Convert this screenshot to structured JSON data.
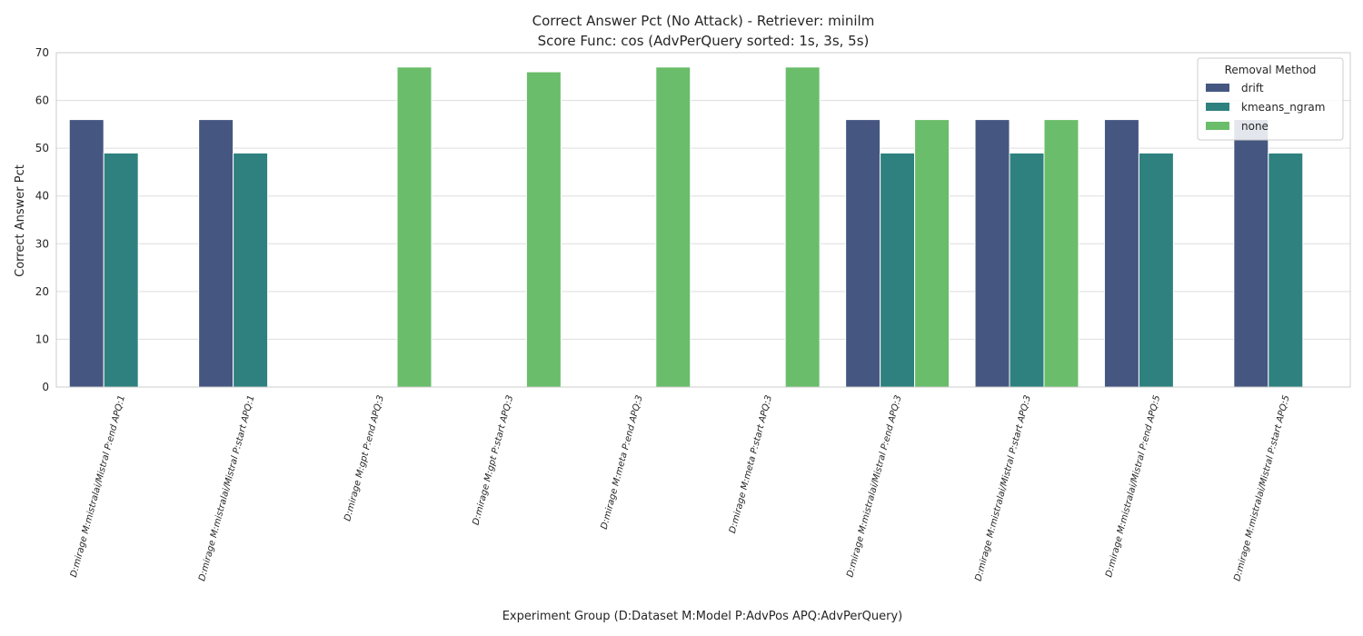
{
  "chart_data": {
    "type": "bar",
    "title": "Correct Answer Pct (No Attack) - Retriever: minilm",
    "subtitle": "Score Func: cos (AdvPerQuery sorted: 1s, 3s, 5s)",
    "xlabel": "Experiment Group (D:Dataset M:Model P:AdvPos APQ:AdvPerQuery)",
    "ylabel": "Correct Answer Pct",
    "ylim": [
      0,
      70
    ],
    "yticks": [
      0,
      10,
      20,
      30,
      40,
      50,
      60,
      70
    ],
    "grid": "y",
    "legend": {
      "title": "Removal Method",
      "placement": "top-right"
    },
    "categories": [
      "D:mirage M:mistralai/Mistral P:end APQ:1",
      "D:mirage M:mistralai/Mistral P:start APQ:1",
      "D:mirage M:gpt P:end APQ:3",
      "D:mirage M:gpt P:start APQ:3",
      "D:mirage M:meta P:end APQ:3",
      "D:mirage M:meta P:start APQ:3",
      "D:mirage M:mistralai/Mistral P:end APQ:3",
      "D:mirage M:mistralai/Mistral P:start APQ:3",
      "D:mirage M:mistralai/Mistral P:end APQ:5",
      "D:mirage M:mistralai/Mistral P:start APQ:5"
    ],
    "series": [
      {
        "name": "drift",
        "color": "#455681",
        "values": [
          56,
          56,
          null,
          null,
          null,
          null,
          56,
          56,
          56,
          56
        ]
      },
      {
        "name": "kmeans_ngram",
        "color": "#2e817e",
        "values": [
          49,
          49,
          null,
          null,
          null,
          null,
          49,
          49,
          49,
          49
        ]
      },
      {
        "name": "none",
        "color": "#6abd6a",
        "values": [
          null,
          null,
          67,
          66,
          67,
          67,
          56,
          56,
          null,
          null
        ]
      }
    ]
  }
}
